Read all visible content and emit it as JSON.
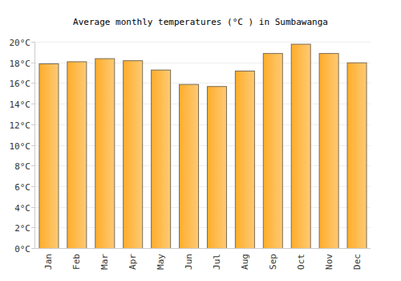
{
  "chart_data": {
    "type": "bar",
    "title": "Average monthly temperatures (°C ) in Sumbawanga",
    "categories": [
      "Jan",
      "Feb",
      "Mar",
      "Apr",
      "May",
      "Jun",
      "Jul",
      "Aug",
      "Sep",
      "Oct",
      "Nov",
      "Dec"
    ],
    "values": [
      17.9,
      18.1,
      18.4,
      18.2,
      17.3,
      15.9,
      15.7,
      17.2,
      18.9,
      19.8,
      18.9,
      18.0
    ],
    "color": "#ffad2a",
    "ylim": [
      0,
      20
    ],
    "yticks": [
      {
        "value": 0,
        "label": "0°C"
      },
      {
        "value": 2,
        "label": "2°C"
      },
      {
        "value": 4,
        "label": "4°C"
      },
      {
        "value": 6,
        "label": "6°C"
      },
      {
        "value": 8,
        "label": "8°C"
      },
      {
        "value": 10,
        "label": "10°C"
      },
      {
        "value": 12,
        "label": "12°C"
      },
      {
        "value": 14,
        "label": "14°C"
      },
      {
        "value": 16,
        "label": "16°C"
      },
      {
        "value": 18,
        "label": "18°C"
      },
      {
        "value": 20,
        "label": "20°C"
      }
    ],
    "grid": true
  }
}
